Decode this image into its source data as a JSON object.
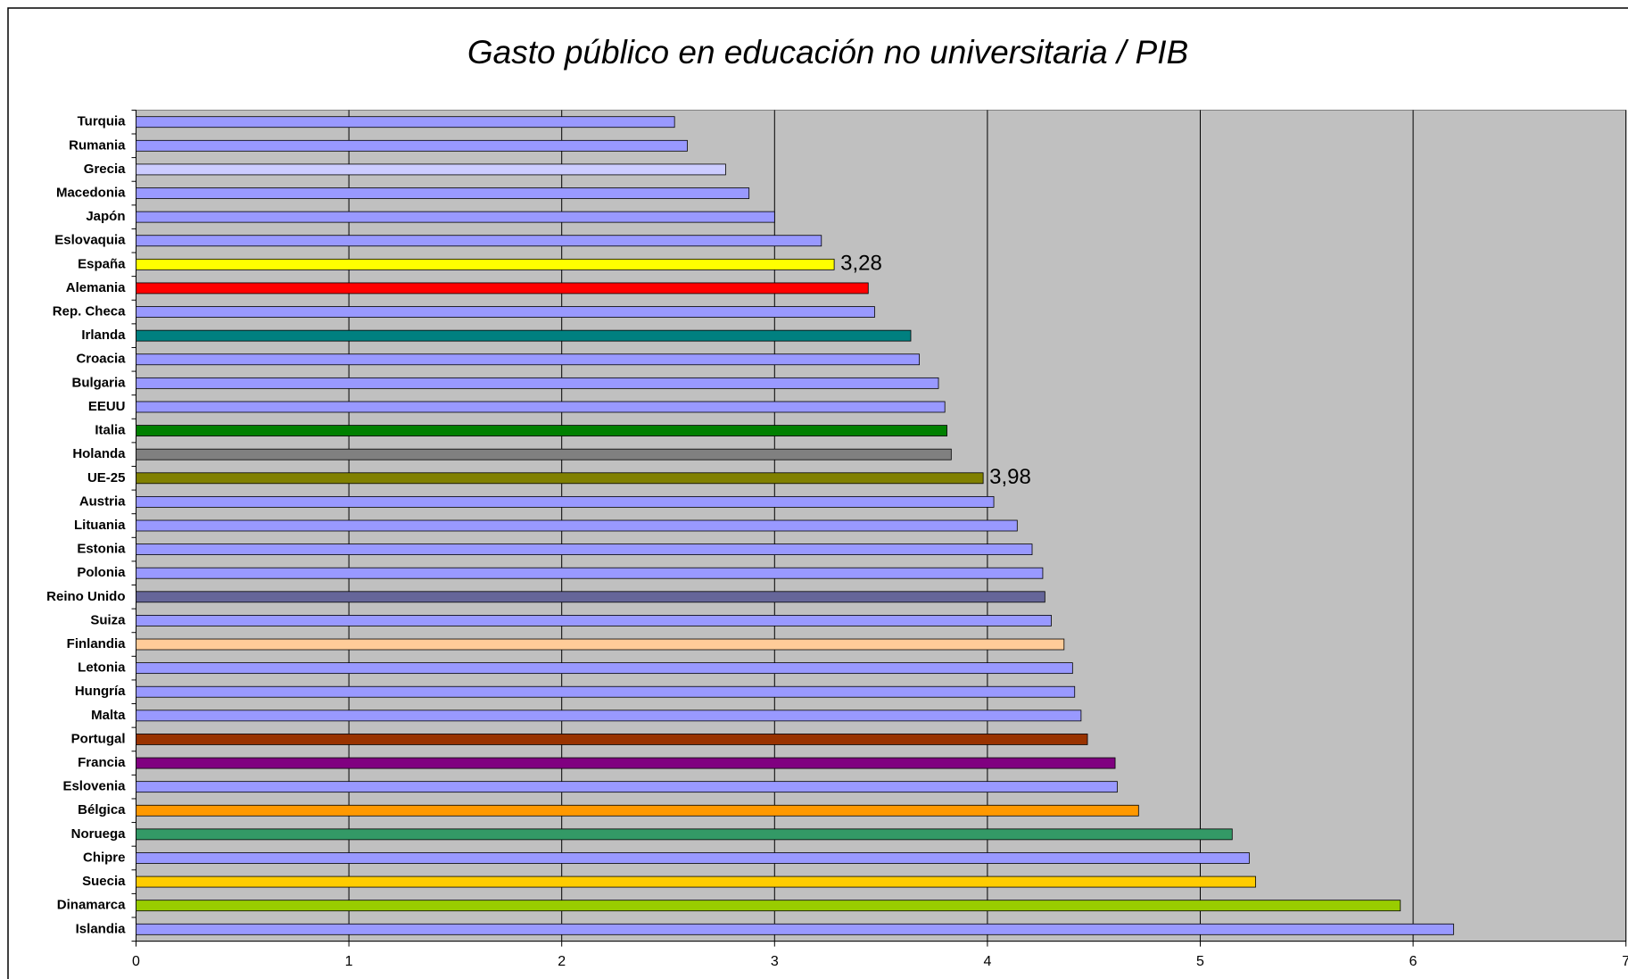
{
  "chart_data": {
    "type": "barh",
    "title": "Gasto público en educación no universitaria / PIB",
    "categories": [
      "Turquia",
      "Rumania",
      "Grecia",
      "Macedonia",
      "Japón",
      "Eslovaquia",
      "España",
      "Alemania",
      "Rep. Checa",
      "Irlanda",
      "Croacia",
      "Bulgaria",
      "EEUU",
      "Italia",
      "Holanda",
      "UE-25",
      "Austria",
      "Lituania",
      "Estonia",
      "Polonia",
      "Reino Unido",
      "Suiza",
      "Finlandia",
      "Letonia",
      "Hungría",
      "Malta",
      "Portugal",
      "Francia",
      "Eslovenia",
      "Bélgica",
      "Noruega",
      "Chipre",
      "Suecia",
      "Dinamarca",
      "Islandia"
    ],
    "values": [
      2.53,
      2.59,
      2.77,
      2.88,
      3.0,
      3.22,
      3.28,
      3.44,
      3.47,
      3.64,
      3.68,
      3.77,
      3.8,
      3.81,
      3.83,
      3.98,
      4.03,
      4.14,
      4.21,
      4.26,
      4.27,
      4.3,
      4.36,
      4.4,
      4.41,
      4.44,
      4.47,
      4.6,
      4.61,
      4.71,
      5.15,
      5.23,
      5.26,
      5.94,
      6.19
    ],
    "value_labels": [
      null,
      null,
      null,
      null,
      null,
      null,
      "3,28",
      null,
      null,
      null,
      null,
      null,
      null,
      null,
      null,
      "3,98",
      null,
      null,
      null,
      null,
      null,
      null,
      null,
      null,
      null,
      null,
      null,
      null,
      null,
      null,
      null,
      null,
      null,
      null,
      null
    ],
    "colors": [
      "#9999ff",
      "#9999ff",
      "#ccccff",
      "#9999ff",
      "#9999ff",
      "#9999ff",
      "#ffff00",
      "#ff0000",
      "#9999ff",
      "#008080",
      "#9999ff",
      "#9999ff",
      "#9999ff",
      "#008000",
      "#808080",
      "#808000",
      "#9999ff",
      "#9999ff",
      "#9999ff",
      "#9999ff",
      "#666699",
      "#9999ff",
      "#ffcc99",
      "#9999ff",
      "#9999ff",
      "#9999ff",
      "#993300",
      "#800080",
      "#9999ff",
      "#ff9900",
      "#339966",
      "#9999ff",
      "#ffcc00",
      "#99cc00",
      "#9999ff"
    ],
    "xlim": [
      0,
      7
    ],
    "xticks": [
      0,
      1,
      2,
      3,
      4,
      5,
      6,
      7
    ],
    "grid": true,
    "plot_background": "#c0c0c0"
  }
}
